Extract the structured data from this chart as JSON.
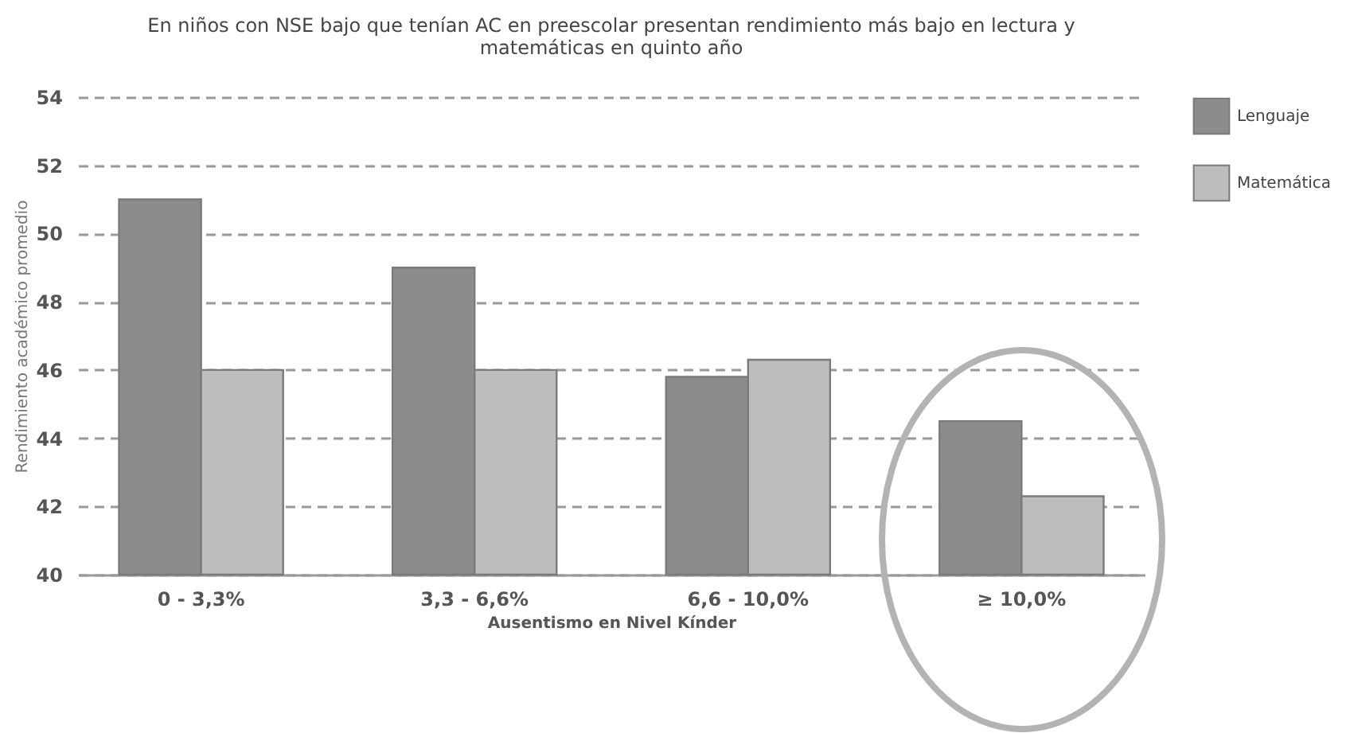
{
  "chart_data": {
    "type": "bar",
    "title": "En niños con NSE bajo que tenían AC en preescolar presentan rendimiento más bajo en lectura y matemáticas en quinto año",
    "xlabel": "Ausentismo en Nivel Kínder",
    "ylabel": "Rendimiento académico promedio",
    "categories": [
      "0 - 3,3%",
      "3,3 - 6,6%",
      "6,6 - 10,0%",
      "≥ 10,0%"
    ],
    "series": [
      {
        "name": "Lenguaje",
        "color": "#8c8c8c",
        "values": [
          51,
          49,
          45.8,
          44.5
        ]
      },
      {
        "name": "Matemática",
        "color": "#bdbdbd",
        "values": [
          46,
          46,
          46.3,
          42.3
        ]
      }
    ],
    "ylim": [
      40,
      54
    ],
    "yticks": [
      40,
      42,
      44,
      46,
      48,
      50,
      52,
      54
    ],
    "grid": "y",
    "legend": "right"
  }
}
